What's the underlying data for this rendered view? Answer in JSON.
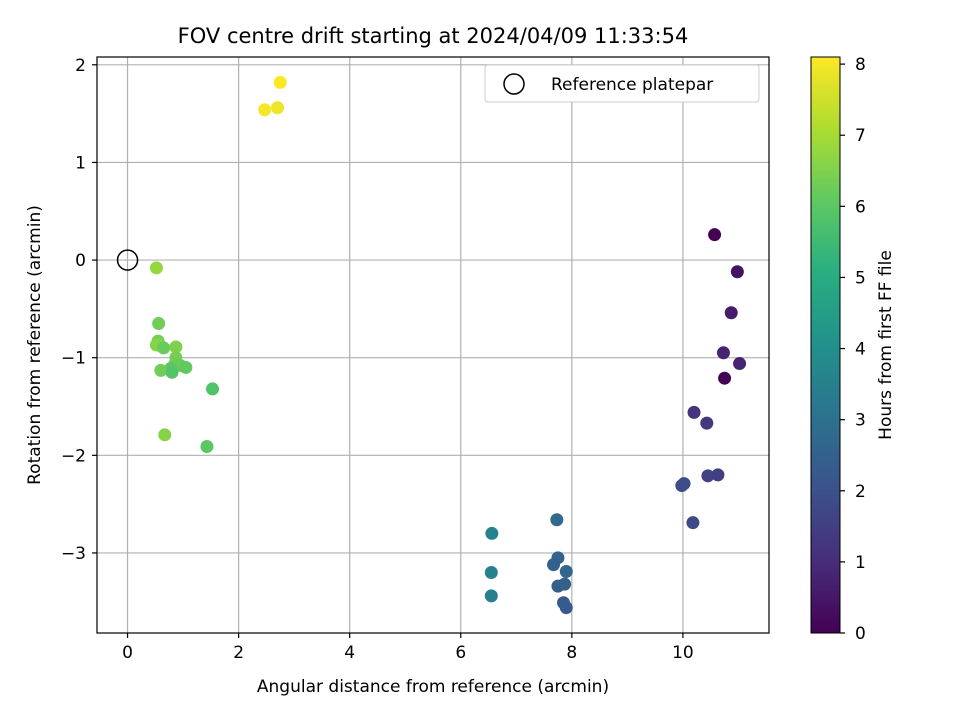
{
  "chart_data": {
    "type": "scatter",
    "title": "FOV centre drift starting at 2024/04/09 11:33:54",
    "xlabel": "Angular distance from reference (arcmin)",
    "ylabel": "Rotation from reference (arcmin)",
    "xlim": [
      -0.55,
      11.55
    ],
    "ylim": [
      -3.82,
      2.08
    ],
    "xticks": [
      0,
      2,
      4,
      6,
      8,
      10
    ],
    "yticks": [
      2,
      1,
      0,
      -1,
      -2,
      -3
    ],
    "xtick_labels": [
      "0",
      "2",
      "4",
      "6",
      "8",
      "10"
    ],
    "ytick_labels": [
      "2",
      "1",
      "0",
      "−1",
      "−2",
      "−3"
    ],
    "grid": true,
    "legend": {
      "position": "top-right",
      "entries": [
        "Reference platepar"
      ]
    },
    "reference_point": {
      "x": 0,
      "y": 0,
      "label": "Reference platepar"
    },
    "colorbar": {
      "label": "Hours from first FF file",
      "colormap": "viridis",
      "range": [
        0,
        8.1
      ],
      "ticks": [
        0,
        1,
        2,
        3,
        4,
        5,
        6,
        7,
        8
      ],
      "tick_labels": [
        "0",
        "1",
        "2",
        "3",
        "4",
        "5",
        "6",
        "7",
        "8"
      ]
    },
    "points": [
      {
        "x": 10.57,
        "y": 0.26,
        "c": 0.0
      },
      {
        "x": 10.75,
        "y": -1.21,
        "c": 0.05
      },
      {
        "x": 10.98,
        "y": -0.12,
        "c": 0.4
      },
      {
        "x": 10.87,
        "y": -0.54,
        "c": 0.6
      },
      {
        "x": 10.73,
        "y": -0.95,
        "c": 0.8
      },
      {
        "x": 11.02,
        "y": -1.06,
        "c": 0.8
      },
      {
        "x": 10.2,
        "y": -1.56,
        "c": 1.2
      },
      {
        "x": 10.43,
        "y": -1.67,
        "c": 1.3
      },
      {
        "x": 10.45,
        "y": -2.21,
        "c": 1.6
      },
      {
        "x": 10.63,
        "y": -2.2,
        "c": 1.5
      },
      {
        "x": 10.02,
        "y": -2.29,
        "c": 1.8
      },
      {
        "x": 9.98,
        "y": -2.31,
        "c": 1.9
      },
      {
        "x": 10.18,
        "y": -2.69,
        "c": 1.8
      },
      {
        "x": 7.73,
        "y": -2.66,
        "c": 2.8
      },
      {
        "x": 7.75,
        "y": -3.05,
        "c": 2.6
      },
      {
        "x": 7.67,
        "y": -3.12,
        "c": 2.5
      },
      {
        "x": 7.9,
        "y": -3.19,
        "c": 2.7
      },
      {
        "x": 7.75,
        "y": -3.34,
        "c": 2.4
      },
      {
        "x": 7.87,
        "y": -3.32,
        "c": 2.5
      },
      {
        "x": 7.85,
        "y": -3.51,
        "c": 2.3
      },
      {
        "x": 7.9,
        "y": -3.56,
        "c": 2.3
      },
      {
        "x": 6.56,
        "y": -2.8,
        "c": 3.6
      },
      {
        "x": 6.55,
        "y": -3.2,
        "c": 3.5
      },
      {
        "x": 6.55,
        "y": -3.44,
        "c": 3.5
      },
      {
        "x": 2.47,
        "y": 1.54,
        "c": 8.0
      },
      {
        "x": 2.7,
        "y": 1.56,
        "c": 7.9
      },
      {
        "x": 2.75,
        "y": 1.82,
        "c": 8.1
      },
      {
        "x": 0.52,
        "y": -0.08,
        "c": 6.8
      },
      {
        "x": 0.56,
        "y": -0.65,
        "c": 6.3
      },
      {
        "x": 0.55,
        "y": -0.83,
        "c": 6.4
      },
      {
        "x": 0.57,
        "y": -0.87,
        "c": 6.5
      },
      {
        "x": 0.52,
        "y": -0.87,
        "c": 6.6
      },
      {
        "x": 0.65,
        "y": -0.9,
        "c": 6.2
      },
      {
        "x": 0.87,
        "y": -0.89,
        "c": 6.5
      },
      {
        "x": 0.87,
        "y": -1.0,
        "c": 6.4
      },
      {
        "x": 0.85,
        "y": -1.07,
        "c": 6.3
      },
      {
        "x": 0.95,
        "y": -1.08,
        "c": 6.2
      },
      {
        "x": 1.05,
        "y": -1.1,
        "c": 6.1
      },
      {
        "x": 0.78,
        "y": -1.11,
        "c": 6.0
      },
      {
        "x": 0.6,
        "y": -1.13,
        "c": 6.3
      },
      {
        "x": 0.8,
        "y": -1.15,
        "c": 5.9
      },
      {
        "x": 1.53,
        "y": -1.32,
        "c": 5.8
      },
      {
        "x": 0.67,
        "y": -1.79,
        "c": 6.6
      },
      {
        "x": 1.43,
        "y": -1.91,
        "c": 6.0
      }
    ]
  }
}
